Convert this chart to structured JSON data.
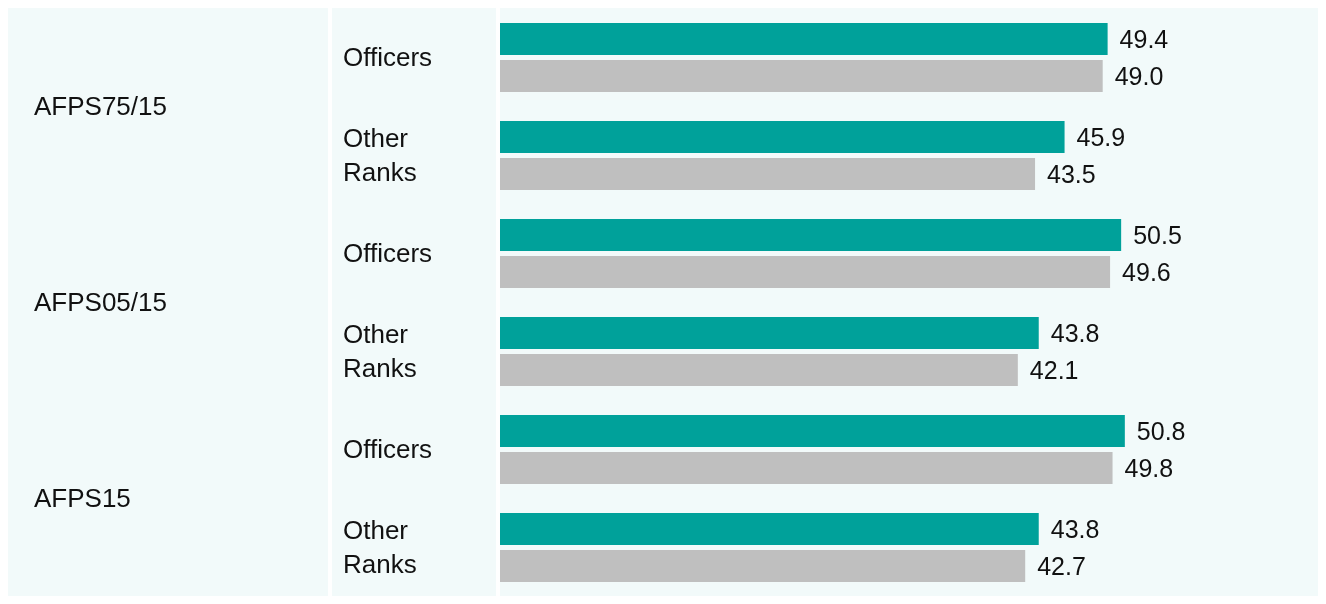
{
  "chart_data": {
    "type": "bar",
    "orientation": "horizontal",
    "categories": [
      "Officers",
      "Other Ranks",
      "Officers",
      "Other Ranks",
      "Officers",
      "Other Ranks"
    ],
    "annotations": [
      "AFPS75/15",
      "AFPS05/15",
      "AFPS15"
    ],
    "series": [
      {
        "color": "#00a19a",
        "values": [
          49.4,
          45.9,
          50.5,
          43.8,
          50.8,
          43.8
        ],
        "value_labels": [
          "49.4",
          "45.9",
          "50.5",
          "43.8",
          "50.8",
          "43.8"
        ]
      },
      {
        "color": "#bfbfbf",
        "values": [
          49.0,
          43.5,
          49.6,
          42.1,
          49.8,
          42.7
        ],
        "value_labels": [
          "49.0",
          "43.5",
          "49.6",
          "42.1",
          "49.8",
          "42.7"
        ]
      }
    ],
    "grid": false,
    "legend": false
  }
}
